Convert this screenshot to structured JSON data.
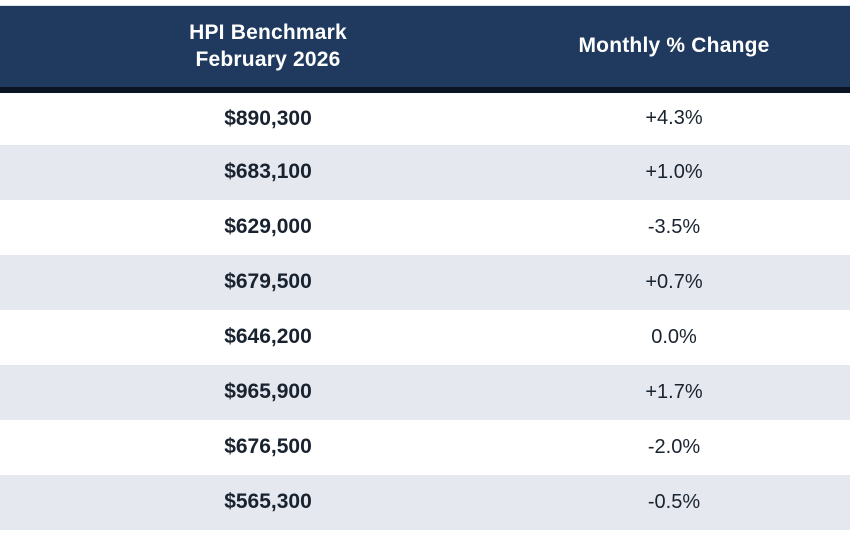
{
  "table": {
    "header": {
      "benchmark_line1": "HPI Benchmark",
      "benchmark_line2": "February 2026",
      "change": "Monthly % Change"
    },
    "rows": [
      {
        "benchmark": "$890,300",
        "change": "+4.3%"
      },
      {
        "benchmark": "$683,100",
        "change": "+1.0%"
      },
      {
        "benchmark": "$629,000",
        "change": "-3.5%"
      },
      {
        "benchmark": "$679,500",
        "change": "+0.7%"
      },
      {
        "benchmark": "$646,200",
        "change": "0.0%"
      },
      {
        "benchmark": "$965,900",
        "change": "+1.7%"
      },
      {
        "benchmark": "$676,500",
        "change": "-2.0%"
      },
      {
        "benchmark": "$565,300",
        "change": "-0.5%"
      }
    ]
  },
  "colors": {
    "header_background": "#1f3a5e",
    "header_text": "#ffffff",
    "header_bottom_border": "#0b1422",
    "row_white": "#ffffff",
    "row_alternate": "#e5e8ee",
    "cell_text": "#19222f"
  },
  "chart_data": {
    "type": "table",
    "title": "HPI Benchmark February 2026 vs Monthly % Change",
    "columns": [
      "HPI Benchmark February 2026",
      "Monthly % Change"
    ],
    "rows": [
      [
        "$890,300",
        "+4.3%"
      ],
      [
        "$683,100",
        "+1.0%"
      ],
      [
        "$629,000",
        "-3.5%"
      ],
      [
        "$679,500",
        "+0.7%"
      ],
      [
        "$646,200",
        "0.0%"
      ],
      [
        "$965,900",
        "+1.7%"
      ],
      [
        "$676,500",
        "-2.0%"
      ],
      [
        "$565,300",
        "-0.5%"
      ]
    ],
    "benchmark_values_numeric": [
      890300,
      683100,
      629000,
      679500,
      646200,
      965900,
      676500,
      565300
    ],
    "monthly_pct_change_numeric": [
      4.3,
      1.0,
      -3.5,
      0.7,
      0.0,
      1.7,
      -2.0,
      -0.5
    ]
  }
}
